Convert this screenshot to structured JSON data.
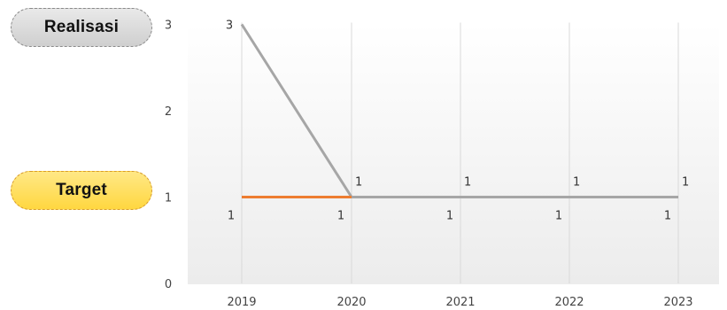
{
  "legend": {
    "realisasi_label": "Realisasi",
    "target_label": "Target"
  },
  "colors": {
    "realisasi": "#a6a6a6",
    "target": "#ed7d31",
    "gridline": "#d9d9d9"
  },
  "chart_data": {
    "type": "line",
    "categories": [
      "2019",
      "2020",
      "2021",
      "2022",
      "2023"
    ],
    "series": [
      {
        "name": "Realisasi",
        "values": [
          3,
          1,
          1,
          1,
          1
        ]
      },
      {
        "name": "Target",
        "values": [
          1,
          1,
          null,
          null,
          null
        ]
      }
    ],
    "target_labels": [
      1,
      1,
      1,
      1,
      1
    ],
    "ylim": [
      0,
      3
    ],
    "yticks": [
      0,
      1,
      2,
      3
    ],
    "grid": "vertical",
    "legend_position": "left"
  }
}
